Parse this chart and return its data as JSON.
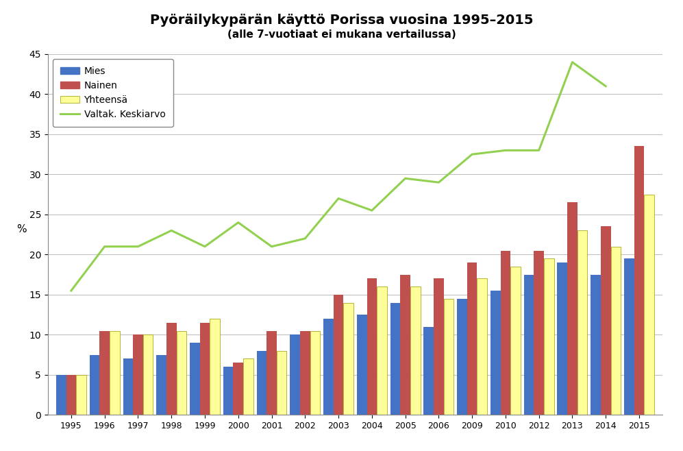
{
  "title": "Pyöräilykypärän käyttö Porissa vuosina 1995–2015",
  "subtitle": "(alle 7-vuotiaat ei mukana vertailussa)",
  "years": [
    1995,
    1996,
    1997,
    1998,
    1999,
    2000,
    2001,
    2002,
    2003,
    2004,
    2005,
    2006,
    2009,
    2010,
    2012,
    2013,
    2014,
    2015
  ],
  "mies": [
    5.0,
    7.5,
    7.0,
    7.5,
    9.0,
    6.0,
    8.0,
    10.0,
    12.0,
    12.5,
    14.0,
    11.0,
    14.5,
    15.5,
    17.5,
    19.0,
    17.5,
    19.5
  ],
  "nainen": [
    5.0,
    10.5,
    10.0,
    11.5,
    11.5,
    6.5,
    10.5,
    10.5,
    15.0,
    17.0,
    17.5,
    17.0,
    19.0,
    20.5,
    20.5,
    26.5,
    23.5,
    33.5
  ],
  "yhteensa": [
    5.0,
    10.5,
    10.0,
    10.5,
    12.0,
    7.0,
    8.0,
    10.5,
    14.0,
    16.0,
    16.0,
    14.5,
    17.0,
    18.5,
    19.5,
    23.0,
    21.0,
    27.5
  ],
  "valtak": [
    15.5,
    21.0,
    21.0,
    23.0,
    21.0,
    24.0,
    21.0,
    22.0,
    27.0,
    25.5,
    29.5,
    29.0,
    32.5,
    33.0,
    33.0,
    44.0,
    41.0,
    null
  ],
  "bar_color_mies": "#4472C4",
  "bar_color_nainen": "#C0504D",
  "bar_color_yhteensa": "#FFFF99",
  "bar_edge_yhteensa": "#999900",
  "line_color_valtak": "#92D050",
  "ylabel": "%",
  "ylim": [
    0,
    45
  ],
  "yticks": [
    0,
    5,
    10,
    15,
    20,
    25,
    30,
    35,
    40,
    45
  ],
  "legend_labels": [
    "Mies",
    "Nainen",
    "Yhteensä",
    "Valtak. Keskiarvo"
  ],
  "background_color": "#FFFFFF",
  "plot_bg_color": "#FFFFFF",
  "grid_color": "#C0C0C0"
}
